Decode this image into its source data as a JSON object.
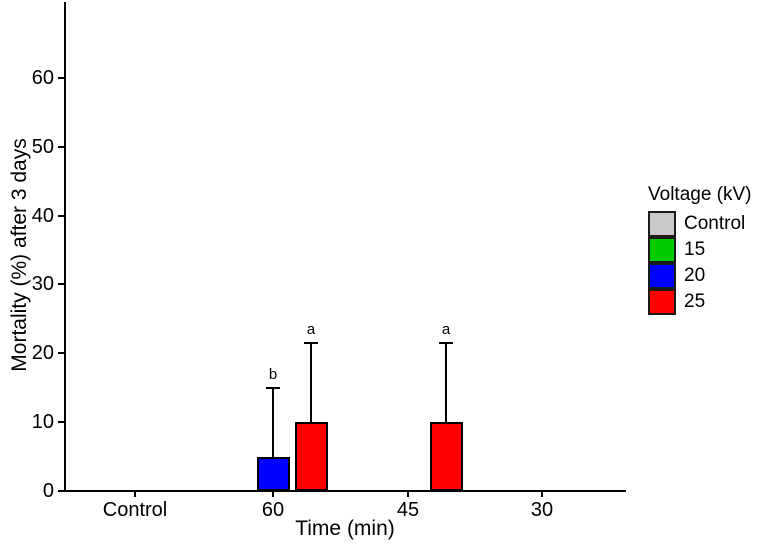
{
  "chart_data": {
    "type": "bar",
    "title": "",
    "xlabel": "Time (min)",
    "ylabel": "Mortality (%) after 3 days",
    "categories": [
      "Control",
      "60",
      "45",
      "30"
    ],
    "y_ticks": [
      0,
      10,
      20,
      30,
      40,
      50,
      60
    ],
    "ylim": [
      0,
      71
    ],
    "grid": false,
    "legend": {
      "title": "Voltage (kV)",
      "position": "right",
      "entries": [
        "Control",
        "15",
        "20",
        "25"
      ]
    },
    "series": [
      {
        "name": "Control",
        "color": "#c9c9c9",
        "values": [
          0,
          0,
          0,
          0
        ],
        "error_upper": [
          null,
          null,
          null,
          null
        ],
        "sig_labels": [
          null,
          null,
          null,
          null
        ]
      },
      {
        "name": "15",
        "color": "#00cc00",
        "values": [
          0,
          0,
          0,
          0
        ],
        "error_upper": [
          null,
          null,
          null,
          null
        ],
        "sig_labels": [
          null,
          null,
          null,
          null
        ]
      },
      {
        "name": "20",
        "color": "#0000ff",
        "values": [
          0,
          5,
          0,
          0
        ],
        "error_upper": [
          null,
          15,
          null,
          null
        ],
        "sig_labels": [
          null,
          "b",
          null,
          null
        ]
      },
      {
        "name": "25",
        "color": "#ff0000",
        "values": [
          0,
          10,
          10,
          0
        ],
        "error_upper": [
          null,
          21.5,
          21.5,
          null
        ],
        "sig_labels": [
          null,
          "a",
          "a",
          null
        ]
      }
    ]
  }
}
